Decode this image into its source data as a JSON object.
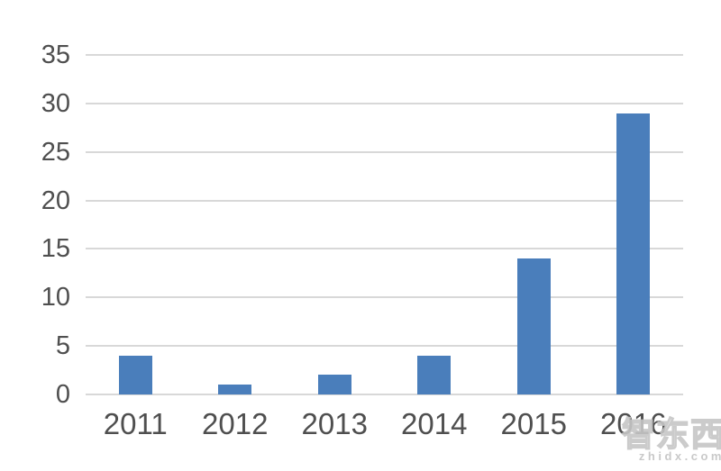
{
  "chart_data": {
    "type": "bar",
    "title": "",
    "xlabel": "",
    "ylabel": "",
    "categories": [
      "2011",
      "2012",
      "2013",
      "2014",
      "2015",
      "2016"
    ],
    "values": [
      4,
      1,
      2,
      4,
      14,
      29
    ],
    "ylim": [
      0,
      35
    ],
    "ytick_step": 5,
    "ytick_labels": [
      "0",
      "5",
      "10",
      "15",
      "20",
      "25",
      "30",
      "35"
    ],
    "grid": true,
    "legend": "none",
    "bar_color": "#4A7EBB",
    "gridline_color": "#D8D8D8",
    "axis_label_color": "#4F4F4F",
    "background_color": "#FFFFFF"
  },
  "watermark": {
    "brand": "智东西",
    "domain": "zhidx.com",
    "color": "#C6C6C6"
  }
}
